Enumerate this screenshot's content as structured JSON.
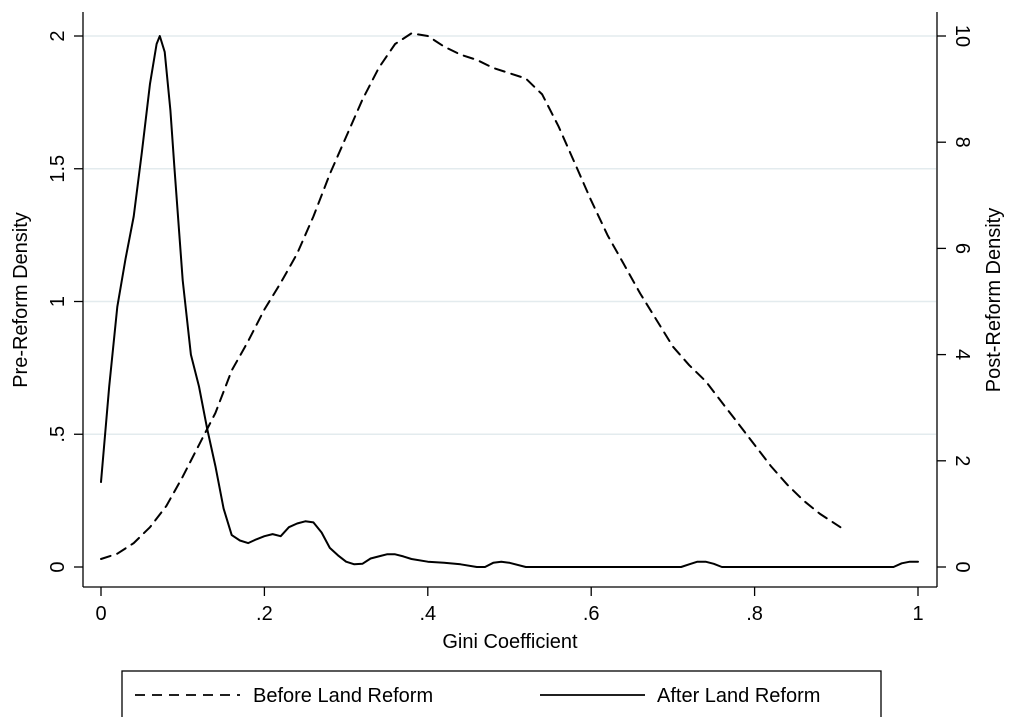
{
  "chart_data": {
    "type": "line",
    "xlabel": "Gini Coefficient",
    "ylabel_left": "Pre-Reform Density",
    "ylabel_right": "Post-Reform Density",
    "xlim": [
      0,
      1
    ],
    "ylim_left": [
      0,
      2
    ],
    "ylim_right": [
      0,
      10
    ],
    "grid": true,
    "legend_position": "bottom",
    "x_ticks": [
      {
        "value": 0,
        "label": "0"
      },
      {
        "value": 0.2,
        "label": ".2"
      },
      {
        "value": 0.4,
        "label": ".4"
      },
      {
        "value": 0.6,
        "label": ".6"
      },
      {
        "value": 0.8,
        "label": ".8"
      },
      {
        "value": 1,
        "label": "1"
      }
    ],
    "y_left_ticks": [
      {
        "value": 0,
        "label": "0"
      },
      {
        "value": 0.5,
        "label": ".5"
      },
      {
        "value": 1,
        "label": "1"
      },
      {
        "value": 1.5,
        "label": "1.5"
      },
      {
        "value": 2,
        "label": "2"
      }
    ],
    "y_right_ticks": [
      {
        "value": 0,
        "label": "0"
      },
      {
        "value": 2,
        "label": "2"
      },
      {
        "value": 4,
        "label": "4"
      },
      {
        "value": 6,
        "label": "6"
      },
      {
        "value": 8,
        "label": "8"
      },
      {
        "value": 10,
        "label": "10"
      }
    ],
    "series": [
      {
        "name": "Before Land Reform",
        "axis": "left",
        "style": "dashed",
        "color": "#000000",
        "points": [
          [
            0.0,
            0.03
          ],
          [
            0.02,
            0.05
          ],
          [
            0.04,
            0.09
          ],
          [
            0.06,
            0.15
          ],
          [
            0.08,
            0.23
          ],
          [
            0.1,
            0.34
          ],
          [
            0.12,
            0.46
          ],
          [
            0.14,
            0.58
          ],
          [
            0.16,
            0.74
          ],
          [
            0.18,
            0.85
          ],
          [
            0.2,
            0.97
          ],
          [
            0.22,
            1.07
          ],
          [
            0.24,
            1.18
          ],
          [
            0.26,
            1.32
          ],
          [
            0.28,
            1.48
          ],
          [
            0.3,
            1.62
          ],
          [
            0.32,
            1.76
          ],
          [
            0.34,
            1.88
          ],
          [
            0.36,
            1.97
          ],
          [
            0.38,
            2.01
          ],
          [
            0.4,
            2.0
          ],
          [
            0.42,
            1.96
          ],
          [
            0.44,
            1.93
          ],
          [
            0.46,
            1.91
          ],
          [
            0.48,
            1.88
          ],
          [
            0.5,
            1.86
          ],
          [
            0.52,
            1.84
          ],
          [
            0.54,
            1.78
          ],
          [
            0.56,
            1.66
          ],
          [
            0.58,
            1.52
          ],
          [
            0.6,
            1.38
          ],
          [
            0.62,
            1.25
          ],
          [
            0.64,
            1.14
          ],
          [
            0.66,
            1.03
          ],
          [
            0.68,
            0.93
          ],
          [
            0.7,
            0.83
          ],
          [
            0.72,
            0.76
          ],
          [
            0.74,
            0.7
          ],
          [
            0.76,
            0.62
          ],
          [
            0.78,
            0.54
          ],
          [
            0.8,
            0.46
          ],
          [
            0.82,
            0.38
          ],
          [
            0.84,
            0.31
          ],
          [
            0.86,
            0.25
          ],
          [
            0.88,
            0.2
          ],
          [
            0.905,
            0.15
          ]
        ]
      },
      {
        "name": "After Land Reform",
        "axis": "right",
        "style": "solid",
        "color": "#000000",
        "points": [
          [
            0.0,
            1.6
          ],
          [
            0.005,
            2.5
          ],
          [
            0.01,
            3.4
          ],
          [
            0.02,
            4.9
          ],
          [
            0.03,
            5.8
          ],
          [
            0.04,
            6.6
          ],
          [
            0.05,
            7.8
          ],
          [
            0.06,
            9.1
          ],
          [
            0.068,
            9.85
          ],
          [
            0.072,
            10.0
          ],
          [
            0.078,
            9.7
          ],
          [
            0.085,
            8.6
          ],
          [
            0.09,
            7.5
          ],
          [
            0.1,
            5.4
          ],
          [
            0.11,
            4.0
          ],
          [
            0.12,
            3.4
          ],
          [
            0.13,
            2.6
          ],
          [
            0.14,
            1.9
          ],
          [
            0.15,
            1.1
          ],
          [
            0.16,
            0.6
          ],
          [
            0.17,
            0.5
          ],
          [
            0.18,
            0.45
          ],
          [
            0.19,
            0.52
          ],
          [
            0.2,
            0.58
          ],
          [
            0.21,
            0.62
          ],
          [
            0.22,
            0.58
          ],
          [
            0.23,
            0.75
          ],
          [
            0.24,
            0.82
          ],
          [
            0.25,
            0.86
          ],
          [
            0.26,
            0.84
          ],
          [
            0.27,
            0.65
          ],
          [
            0.28,
            0.36
          ],
          [
            0.29,
            0.22
          ],
          [
            0.3,
            0.1
          ],
          [
            0.31,
            0.05
          ],
          [
            0.32,
            0.06
          ],
          [
            0.33,
            0.16
          ],
          [
            0.34,
            0.2
          ],
          [
            0.35,
            0.24
          ],
          [
            0.36,
            0.24
          ],
          [
            0.37,
            0.2
          ],
          [
            0.38,
            0.15
          ],
          [
            0.4,
            0.1
          ],
          [
            0.42,
            0.08
          ],
          [
            0.44,
            0.05
          ],
          [
            0.46,
            0.0
          ],
          [
            0.47,
            0.0
          ],
          [
            0.48,
            0.08
          ],
          [
            0.49,
            0.1
          ],
          [
            0.5,
            0.08
          ],
          [
            0.52,
            0.0
          ],
          [
            0.56,
            0.0
          ],
          [
            0.6,
            0.0
          ],
          [
            0.64,
            0.0
          ],
          [
            0.68,
            0.0
          ],
          [
            0.71,
            0.0
          ],
          [
            0.72,
            0.05
          ],
          [
            0.73,
            0.1
          ],
          [
            0.74,
            0.1
          ],
          [
            0.75,
            0.06
          ],
          [
            0.76,
            0.0
          ],
          [
            0.8,
            0.0
          ],
          [
            0.85,
            0.0
          ],
          [
            0.9,
            0.0
          ],
          [
            0.95,
            0.0
          ],
          [
            0.97,
            0.0
          ],
          [
            0.98,
            0.07
          ],
          [
            0.99,
            0.1
          ],
          [
            1.0,
            0.1
          ]
        ]
      }
    ]
  }
}
